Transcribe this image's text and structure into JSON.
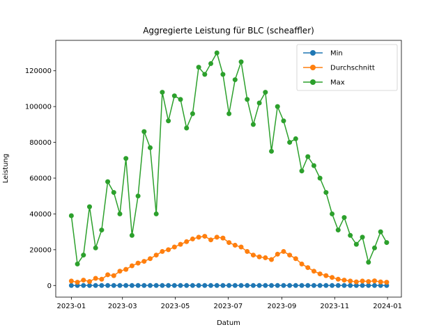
{
  "chart_data": {
    "type": "line",
    "title": "Aggregierte Leistung für BLC (scheaffler)",
    "xlabel": "Datum",
    "ylabel": "Leistung",
    "x_range": [
      "2022-12-14",
      "2024-01-17"
    ],
    "ylim": [
      -6500,
      137000
    ],
    "x_ticks": [
      "2023-01",
      "2023-03",
      "2023-05",
      "2023-07",
      "2023-09",
      "2023-11",
      "2024-01"
    ],
    "y_ticks": [
      0,
      20000,
      40000,
      60000,
      80000,
      100000,
      120000
    ],
    "grid": false,
    "legend_position": "upper right",
    "marker": "circle",
    "x": [
      "2023-01-01",
      "2023-01-08",
      "2023-01-15",
      "2023-01-22",
      "2023-01-29",
      "2023-02-05",
      "2023-02-12",
      "2023-02-19",
      "2023-02-26",
      "2023-03-05",
      "2023-03-12",
      "2023-03-19",
      "2023-03-26",
      "2023-04-02",
      "2023-04-09",
      "2023-04-16",
      "2023-04-23",
      "2023-04-30",
      "2023-05-07",
      "2023-05-14",
      "2023-05-21",
      "2023-05-28",
      "2023-06-04",
      "2023-06-11",
      "2023-06-18",
      "2023-06-25",
      "2023-07-02",
      "2023-07-09",
      "2023-07-16",
      "2023-07-23",
      "2023-07-30",
      "2023-08-06",
      "2023-08-13",
      "2023-08-20",
      "2023-08-27",
      "2023-09-03",
      "2023-09-10",
      "2023-09-17",
      "2023-09-24",
      "2023-10-01",
      "2023-10-08",
      "2023-10-15",
      "2023-10-22",
      "2023-10-29",
      "2023-11-05",
      "2023-11-12",
      "2023-11-19",
      "2023-11-26",
      "2023-12-03",
      "2023-12-10",
      "2023-12-17",
      "2023-12-24",
      "2023-12-31"
    ],
    "series": [
      {
        "name": "Min",
        "color": "#1f77b4",
        "values": [
          0,
          0,
          0,
          0,
          0,
          0,
          0,
          0,
          0,
          0,
          0,
          0,
          0,
          0,
          0,
          0,
          0,
          0,
          0,
          0,
          0,
          0,
          0,
          0,
          0,
          0,
          0,
          0,
          0,
          0,
          0,
          0,
          0,
          0,
          0,
          0,
          0,
          0,
          0,
          0,
          0,
          0,
          0,
          0,
          0,
          0,
          0,
          0,
          0,
          0,
          0,
          0,
          0
        ]
      },
      {
        "name": "Durchschnitt",
        "color": "#ff7f0e",
        "values": [
          2500,
          1800,
          3000,
          2200,
          4000,
          3500,
          6000,
          5500,
          8000,
          9000,
          11000,
          12500,
          13500,
          15000,
          17000,
          19000,
          20000,
          21500,
          23000,
          24500,
          26000,
          27000,
          27500,
          25500,
          27000,
          26500,
          24000,
          22500,
          21500,
          19000,
          17000,
          16000,
          15500,
          14500,
          17500,
          19000,
          17000,
          15000,
          12000,
          10000,
          8000,
          6500,
          5500,
          4500,
          3500,
          3000,
          2500,
          2000,
          2500,
          2200,
          2600,
          2000,
          1800
        ]
      },
      {
        "name": "Max",
        "color": "#2ca02c",
        "values": [
          39000,
          12000,
          17000,
          44000,
          21000,
          31000,
          58000,
          52000,
          40000,
          71000,
          28000,
          50000,
          86000,
          77000,
          40000,
          108000,
          92000,
          106000,
          104000,
          88000,
          96000,
          122000,
          118000,
          124000,
          130000,
          118000,
          96000,
          115000,
          125000,
          104000,
          90000,
          102000,
          108000,
          75000,
          100000,
          92000,
          80000,
          82000,
          64000,
          72000,
          67000,
          60000,
          52000,
          40000,
          31000,
          38000,
          28000,
          23000,
          27000,
          13000,
          21000,
          30000,
          24000
        ]
      }
    ]
  }
}
